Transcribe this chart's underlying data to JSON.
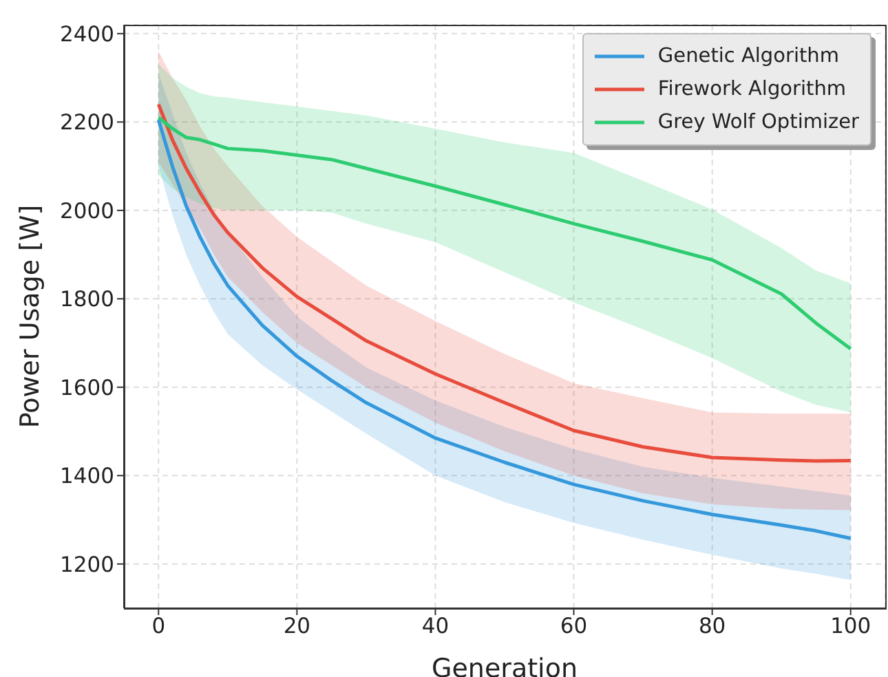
{
  "chart_data": {
    "type": "line",
    "xlabel": "Generation",
    "ylabel": "Power Usage [W]",
    "x": [
      0,
      2,
      4,
      6,
      8,
      10,
      15,
      20,
      25,
      30,
      40,
      50,
      60,
      70,
      80,
      90,
      95,
      100
    ],
    "series": [
      {
        "name": "Genetic Algorithm",
        "color": "#3498db",
        "values": [
          2205,
          2100,
          2010,
          1940,
          1880,
          1830,
          1740,
          1670,
          1615,
          1565,
          1485,
          1430,
          1380,
          1343,
          1312,
          1288,
          1275,
          1258
        ],
        "lower": [
          2100,
          1990,
          1900,
          1830,
          1770,
          1720,
          1650,
          1595,
          1545,
          1495,
          1400,
          1340,
          1293,
          1255,
          1221,
          1190,
          1178,
          1164
        ],
        "upper": [
          2310,
          2220,
          2130,
          2060,
          2000,
          1950,
          1850,
          1760,
          1700,
          1645,
          1570,
          1510,
          1460,
          1420,
          1395,
          1375,
          1365,
          1355
        ]
      },
      {
        "name": "Firework Algorithm",
        "color": "#e74c3c",
        "values": [
          2240,
          2160,
          2095,
          2040,
          1990,
          1950,
          1870,
          1805,
          1755,
          1705,
          1630,
          1565,
          1502,
          1465,
          1441,
          1435,
          1433,
          1434
        ],
        "lower": [
          2110,
          2060,
          2010,
          1960,
          1900,
          1850,
          1770,
          1700,
          1650,
          1600,
          1520,
          1455,
          1400,
          1360,
          1335,
          1325,
          1323,
          1322
        ],
        "upper": [
          2360,
          2300,
          2250,
          2190,
          2140,
          2100,
          2010,
          1940,
          1885,
          1830,
          1750,
          1675,
          1609,
          1575,
          1543,
          1540,
          1540,
          1540
        ]
      },
      {
        "name": "Grey Wolf Optimizer",
        "color": "#2ecc71",
        "values": [
          2210,
          2185,
          2165,
          2160,
          2150,
          2140,
          2135,
          2125,
          2115,
          2095,
          2055,
          2013,
          1970,
          1930,
          1888,
          1811,
          1745,
          1687
        ],
        "lower": [
          2080,
          2050,
          2030,
          2015,
          2005,
          2000,
          2000,
          2000,
          1995,
          1970,
          1928,
          1860,
          1792,
          1731,
          1666,
          1590,
          1560,
          1543
        ],
        "upper": [
          2330,
          2300,
          2280,
          2265,
          2258,
          2255,
          2245,
          2235,
          2225,
          2215,
          2185,
          2154,
          2130,
          2067,
          2002,
          1915,
          1864,
          1835
        ]
      }
    ],
    "xlim": [
      -5,
      105
    ],
    "ylim": [
      1100,
      2420
    ],
    "xticks": [
      0,
      20,
      40,
      60,
      80,
      100
    ],
    "yticks": [
      1200,
      1400,
      1600,
      1800,
      2000,
      2200,
      2400
    ],
    "grid": true,
    "legend": "top right",
    "marker": "none",
    "line_style": "solid"
  }
}
